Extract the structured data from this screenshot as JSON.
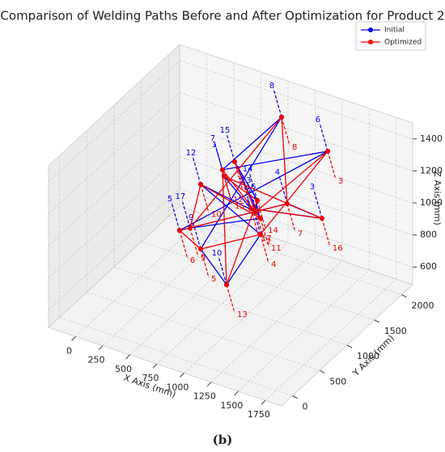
{
  "chart_data": {
    "type": "line3d",
    "title": "Comparison of Welding Paths Before and After Optimization for Product 2",
    "caption": "(b)",
    "xlabel": "X Axis (mm)",
    "ylabel": "Y Axis (mm)",
    "zlabel": "Z Axis (mm)",
    "xlim": [
      -250,
      1900
    ],
    "ylim": [
      -200,
      2200
    ],
    "zlim": [
      490,
      1500
    ],
    "xticks": [
      0,
      250,
      500,
      750,
      1000,
      1250,
      1500,
      1750
    ],
    "yticks": [
      0,
      500,
      1000,
      1500,
      2000
    ],
    "zticks": [
      600,
      800,
      1000,
      1200,
      1400
    ],
    "grid": true,
    "legend": "upper right",
    "series": [
      {
        "name": "Initial",
        "color": "#0000ee",
        "x": [
          765,
          1012,
          1668,
          1347,
          354,
          1358,
          750,
          812,
          549,
          788,
          1101,
          549,
          1057,
          1072,
          862,
          1101,
          451
        ],
        "y": [
          1000,
          1000,
          1000,
          1000,
          1000,
          1720,
          1000,
          1960,
          1000,
          1000,
          1000,
          1000,
          1000,
          1000,
          1000,
          1000,
          1000
        ],
        "z": [
          1287,
          1141,
          1230,
          1248,
          855,
          1351,
          1324,
          1364,
          783,
          615,
          1000,
          1187,
          1131,
          1205,
          1400,
          1101,
          892
        ],
        "labels": [
          1,
          2,
          3,
          4,
          5,
          6,
          7,
          8,
          9,
          10,
          11,
          12,
          13,
          14,
          15,
          16,
          17
        ]
      },
      {
        "name": "Optimized",
        "color": "#ee0000",
        "x": [
          862,
          1057,
          1358,
          1101,
          549,
          354,
          1347,
          812,
          451,
          549,
          1101,
          750,
          788,
          1072,
          765,
          1668,
          1012
        ],
        "y": [
          1000,
          1000,
          1720,
          1000,
          1000,
          1000,
          1000,
          1960,
          1000,
          1000,
          1000,
          1000,
          1000,
          1000,
          1000,
          1000,
          1000
        ],
        "z": [
          1400,
          1131,
          1351,
          1000,
          783,
          855,
          1248,
          1364,
          892,
          1187,
          1101,
          1324,
          615,
          1205,
          1287,
          1230,
          1141
        ],
        "labels": [
          1,
          2,
          3,
          4,
          5,
          6,
          7,
          8,
          9,
          10,
          11,
          12,
          13,
          14,
          15,
          16,
          17
        ]
      }
    ]
  }
}
